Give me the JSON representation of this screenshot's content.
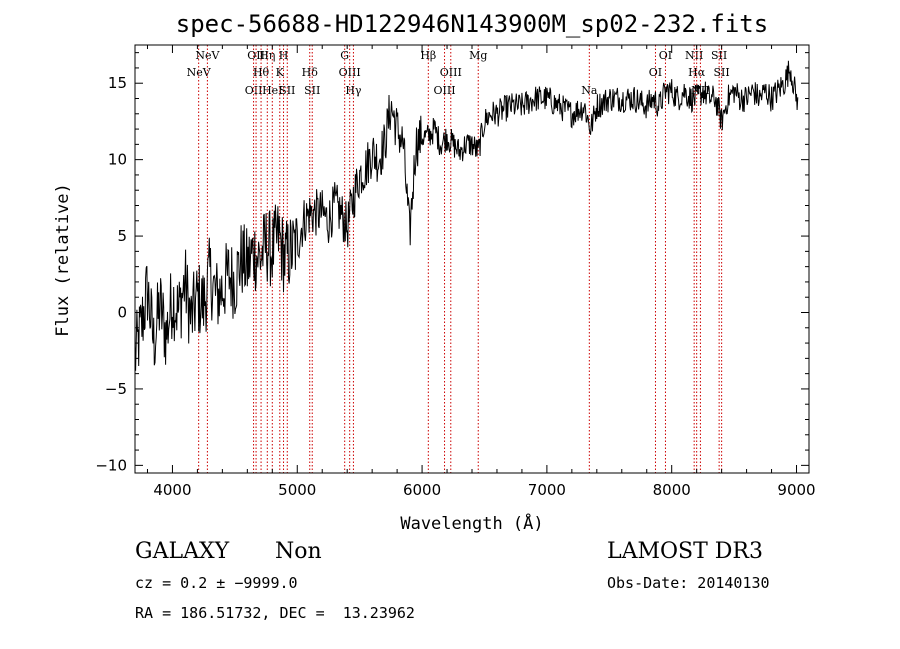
{
  "chart_data": {
    "type": "line",
    "title": "spec-56688-HD122946N143900M_sp02-232.fits",
    "xlabel": "Wavelength (Å)",
    "ylabel": "Flux (relative)",
    "xlim": [
      3700,
      9100
    ],
    "ylim": [
      -10.5,
      17.5
    ],
    "x_ticks": [
      4000,
      5000,
      6000,
      7000,
      8000,
      9000
    ],
    "x_tick_labels": [
      "4000",
      "5000",
      "6000",
      "7000",
      "8000",
      "9000"
    ],
    "y_ticks": [
      -10,
      -5,
      0,
      5,
      10,
      15
    ],
    "y_tick_labels": [
      "−10",
      "−5",
      "0",
      "5",
      "10",
      "15"
    ],
    "grid": false,
    "series": [
      {
        "name": "flux",
        "x": [
          3700,
          3750,
          3800,
          3850,
          3900,
          3950,
          4000,
          4050,
          4100,
          4150,
          4200,
          4250,
          4300,
          4350,
          4400,
          4450,
          4500,
          4550,
          4600,
          4650,
          4700,
          4750,
          4800,
          4850,
          4900,
          4950,
          5000,
          5050,
          5100,
          5150,
          5200,
          5250,
          5300,
          5350,
          5400,
          5450,
          5500,
          5550,
          5600,
          5650,
          5700,
          5750,
          5800,
          5850,
          5900,
          5950,
          6000,
          6050,
          6100,
          6150,
          6200,
          6250,
          6300,
          6350,
          6400,
          6450,
          6500,
          6550,
          6600,
          6700,
          6800,
          6900,
          7000,
          7100,
          7200,
          7300,
          7350,
          7400,
          7500,
          7600,
          7700,
          7800,
          7850,
          7900,
          7950,
          8000,
          8050,
          8100,
          8150,
          8200,
          8250,
          8300,
          8350,
          8400,
          8450,
          8500,
          8550,
          8600,
          8650,
          8700,
          8750,
          8800,
          8850,
          8900,
          8950,
          9000
        ],
        "y": [
          -3,
          -1,
          1.5,
          -2,
          0.5,
          -1.5,
          1,
          0,
          2,
          -0.5,
          1,
          0.5,
          2.5,
          1,
          1.5,
          2.5,
          2,
          3.5,
          3,
          4,
          3.5,
          4.5,
          4,
          5,
          3.5,
          4,
          4.5,
          6,
          6.5,
          6.5,
          6.5,
          6,
          7,
          6.5,
          5.5,
          7.5,
          9,
          9.5,
          10.5,
          10,
          11,
          13.5,
          12,
          11,
          5,
          11,
          11.5,
          11.5,
          12,
          11,
          11.5,
          11,
          10.5,
          11,
          11,
          10.5,
          12.5,
          13,
          13,
          13.5,
          13.5,
          14,
          14,
          13.5,
          13,
          13.5,
          12,
          13.5,
          14,
          14,
          14,
          13.5,
          14,
          13.5,
          14.5,
          14.5,
          14,
          14.5,
          14,
          14,
          14.5,
          14,
          14,
          12.5,
          14,
          14.5,
          14,
          14,
          14.5,
          14,
          14.5,
          14,
          14.5,
          15,
          16,
          14
        ]
      }
    ],
    "line_markers": [
      {
        "label": "NeV",
        "x": 4210,
        "row": 1
      },
      {
        "label": "NeV",
        "x": 4280,
        "row": 0
      },
      {
        "label": "OII",
        "x": 4650,
        "row": 2
      },
      {
        "label": "OII",
        "x": 4670,
        "row": 0
      },
      {
        "label": "Hθ",
        "x": 4710,
        "row": 1
      },
      {
        "label": "Hη",
        "x": 4760,
        "row": 0
      },
      {
        "label": "HeI",
        "x": 4800,
        "row": 2
      },
      {
        "label": "K",
        "x": 4860,
        "row": 1
      },
      {
        "label": "H",
        "x": 4890,
        "row": 0
      },
      {
        "label": "SII",
        "x": 4920,
        "row": 2
      },
      {
        "label": "Hδ",
        "x": 5100,
        "row": 1
      },
      {
        "label": "SII",
        "x": 5120,
        "row": 2
      },
      {
        "label": "G",
        "x": 5380,
        "row": 0
      },
      {
        "label": "OIII",
        "x": 5420,
        "row": 1
      },
      {
        "label": "Hγ",
        "x": 5450,
        "row": 2
      },
      {
        "label": "Hβ",
        "x": 6050,
        "row": 0
      },
      {
        "label": "OIII",
        "x": 6180,
        "row": 2
      },
      {
        "label": "OIII",
        "x": 6230,
        "row": 1
      },
      {
        "label": "Mg",
        "x": 6450,
        "row": 0
      },
      {
        "label": "Na",
        "x": 7340,
        "row": 2
      },
      {
        "label": "OI",
        "x": 7870,
        "row": 1
      },
      {
        "label": "OI",
        "x": 7950,
        "row": 0
      },
      {
        "label": "NII",
        "x": 8180,
        "row": 0
      },
      {
        "label": "Hα",
        "x": 8200,
        "row": 1
      },
      {
        "label": "NII",
        "x": 8230,
        "row": 2
      },
      {
        "label": "SII",
        "x": 8380,
        "row": 0
      },
      {
        "label": "SII",
        "x": 8400,
        "row": 1
      }
    ]
  },
  "info": {
    "object_class": "GALAXY",
    "subclass": "Non",
    "survey": "LAMOST DR3",
    "redshift": "cz = 0.2 ± −9999.0",
    "obs_date": "Obs-Date: 20140130",
    "coords": "RA = 186.51732, DEC =  13.23962"
  }
}
